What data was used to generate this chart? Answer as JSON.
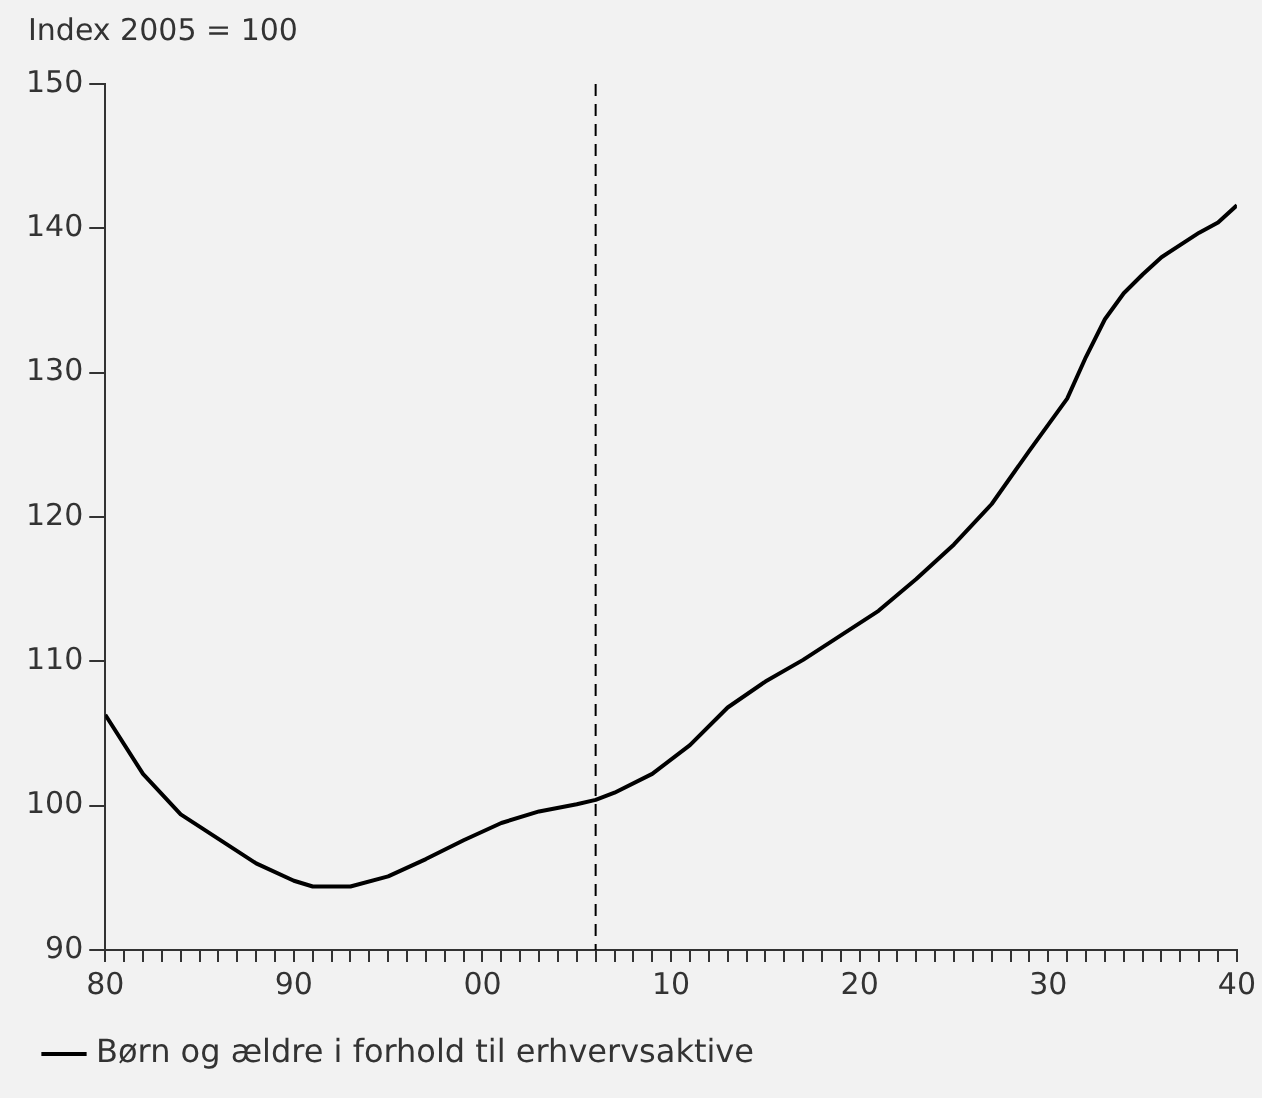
{
  "chart_data": {
    "type": "line",
    "ylabel": "Index 2005 = 100",
    "x": [
      1980,
      1982,
      1984,
      1986,
      1988,
      1990,
      1991,
      1993,
      1995,
      1997,
      1999,
      2001,
      2003,
      2005,
      2006,
      2007,
      2009,
      2011,
      2013,
      2015,
      2017,
      2019,
      2021,
      2023,
      2025,
      2027,
      2029,
      2031,
      2032,
      2033,
      2034,
      2035,
      2036,
      2038,
      2039,
      2040
    ],
    "series": [
      {
        "name": "Børn og ældre i forhold til erhvervsaktive",
        "color": "#000000",
        "values": [
          106.3,
          102.2,
          99.4,
          97.7,
          96.0,
          94.8,
          94.4,
          94.4,
          95.1,
          96.3,
          97.6,
          98.8,
          99.6,
          100.1,
          100.4,
          100.9,
          102.2,
          104.2,
          106.8,
          108.6,
          110.1,
          111.8,
          113.5,
          115.7,
          118.1,
          120.9,
          124.6,
          128.2,
          131.1,
          133.7,
          135.5,
          136.8,
          138.0,
          139.7,
          140.4,
          141.6
        ]
      }
    ],
    "xlim": [
      1980,
      2040
    ],
    "xticks": [
      {
        "value": 1980,
        "label": "80"
      },
      {
        "value": 1981,
        "label": null
      },
      {
        "value": 1982,
        "label": null
      },
      {
        "value": 1983,
        "label": null
      },
      {
        "value": 1984,
        "label": null
      },
      {
        "value": 1985,
        "label": null
      },
      {
        "value": 1986,
        "label": null
      },
      {
        "value": 1987,
        "label": null
      },
      {
        "value": 1988,
        "label": null
      },
      {
        "value": 1989,
        "label": null
      },
      {
        "value": 1990,
        "label": "90"
      },
      {
        "value": 1991,
        "label": null
      },
      {
        "value": 1992,
        "label": null
      },
      {
        "value": 1993,
        "label": null
      },
      {
        "value": 1994,
        "label": null
      },
      {
        "value": 1995,
        "label": null
      },
      {
        "value": 1996,
        "label": null
      },
      {
        "value": 1997,
        "label": null
      },
      {
        "value": 1998,
        "label": null
      },
      {
        "value": 1999,
        "label": null
      },
      {
        "value": 2000,
        "label": "00"
      },
      {
        "value": 2001,
        "label": null
      },
      {
        "value": 2002,
        "label": null
      },
      {
        "value": 2003,
        "label": null
      },
      {
        "value": 2004,
        "label": null
      },
      {
        "value": 2005,
        "label": null
      },
      {
        "value": 2006,
        "label": null
      },
      {
        "value": 2007,
        "label": null
      },
      {
        "value": 2008,
        "label": null
      },
      {
        "value": 2009,
        "label": null
      },
      {
        "value": 2010,
        "label": "10"
      },
      {
        "value": 2011,
        "label": null
      },
      {
        "value": 2012,
        "label": null
      },
      {
        "value": 2013,
        "label": null
      },
      {
        "value": 2014,
        "label": null
      },
      {
        "value": 2015,
        "label": null
      },
      {
        "value": 2016,
        "label": null
      },
      {
        "value": 2017,
        "label": null
      },
      {
        "value": 2018,
        "label": null
      },
      {
        "value": 2019,
        "label": null
      },
      {
        "value": 2020,
        "label": "20"
      },
      {
        "value": 2021,
        "label": null
      },
      {
        "value": 2022,
        "label": null
      },
      {
        "value": 2023,
        "label": null
      },
      {
        "value": 2024,
        "label": null
      },
      {
        "value": 2025,
        "label": null
      },
      {
        "value": 2026,
        "label": null
      },
      {
        "value": 2027,
        "label": null
      },
      {
        "value": 2028,
        "label": null
      },
      {
        "value": 2029,
        "label": null
      },
      {
        "value": 2030,
        "label": "30"
      },
      {
        "value": 2031,
        "label": null
      },
      {
        "value": 2032,
        "label": null
      },
      {
        "value": 2033,
        "label": null
      },
      {
        "value": 2034,
        "label": null
      },
      {
        "value": 2035,
        "label": null
      },
      {
        "value": 2036,
        "label": null
      },
      {
        "value": 2037,
        "label": null
      },
      {
        "value": 2038,
        "label": null
      },
      {
        "value": 2039,
        "label": null
      },
      {
        "value": 2040,
        "label": "40"
      }
    ],
    "ylim": [
      90,
      150
    ],
    "yticks": [
      90,
      100,
      110,
      120,
      130,
      140,
      150
    ],
    "ref_lines": [
      {
        "axis": "x",
        "value": 2006,
        "color": "#000000",
        "line_style": "dashed"
      }
    ],
    "grid": false,
    "legend": "bottom left",
    "marker": "none",
    "line_style": "solid"
  }
}
